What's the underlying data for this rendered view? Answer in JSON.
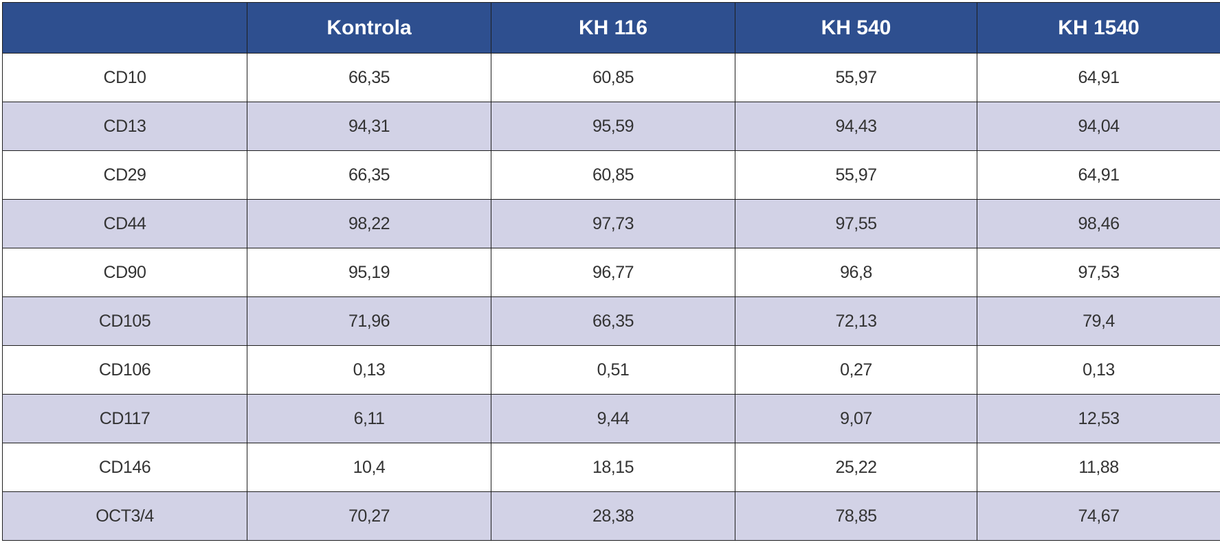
{
  "table": {
    "headers": [
      "",
      "Kontrola",
      "KH 116",
      "KH 540",
      "KH 1540"
    ],
    "rows": [
      [
        "CD10",
        "66,35",
        "60,85",
        "55,97",
        "64,91"
      ],
      [
        "CD13",
        "94,31",
        "95,59",
        "94,43",
        "94,04"
      ],
      [
        "CD29",
        "66,35",
        "60,85",
        "55,97",
        "64,91"
      ],
      [
        "CD44",
        "98,22",
        "97,73",
        "97,55",
        "98,46"
      ],
      [
        "CD90",
        "95,19",
        "96,77",
        "96,8",
        "97,53"
      ],
      [
        "CD105",
        "71,96",
        "66,35",
        "72,13",
        "79,4"
      ],
      [
        "CD106",
        "0,13",
        "0,51",
        "0,27",
        "0,13"
      ],
      [
        "CD117",
        "6,11",
        "9,44",
        "9,07",
        "12,53"
      ],
      [
        "CD146",
        "10,4",
        "18,15",
        "25,22",
        "11,88"
      ],
      [
        "OCT3/4",
        "70,27",
        "28,38",
        "78,85",
        "74,67"
      ]
    ]
  },
  "colors": {
    "header_bg": "#2e4f8f",
    "header_text": "#ffffff",
    "band_row": "#d2d2e6",
    "plain_row": "#ffffff",
    "border": "#1f1f1f"
  }
}
